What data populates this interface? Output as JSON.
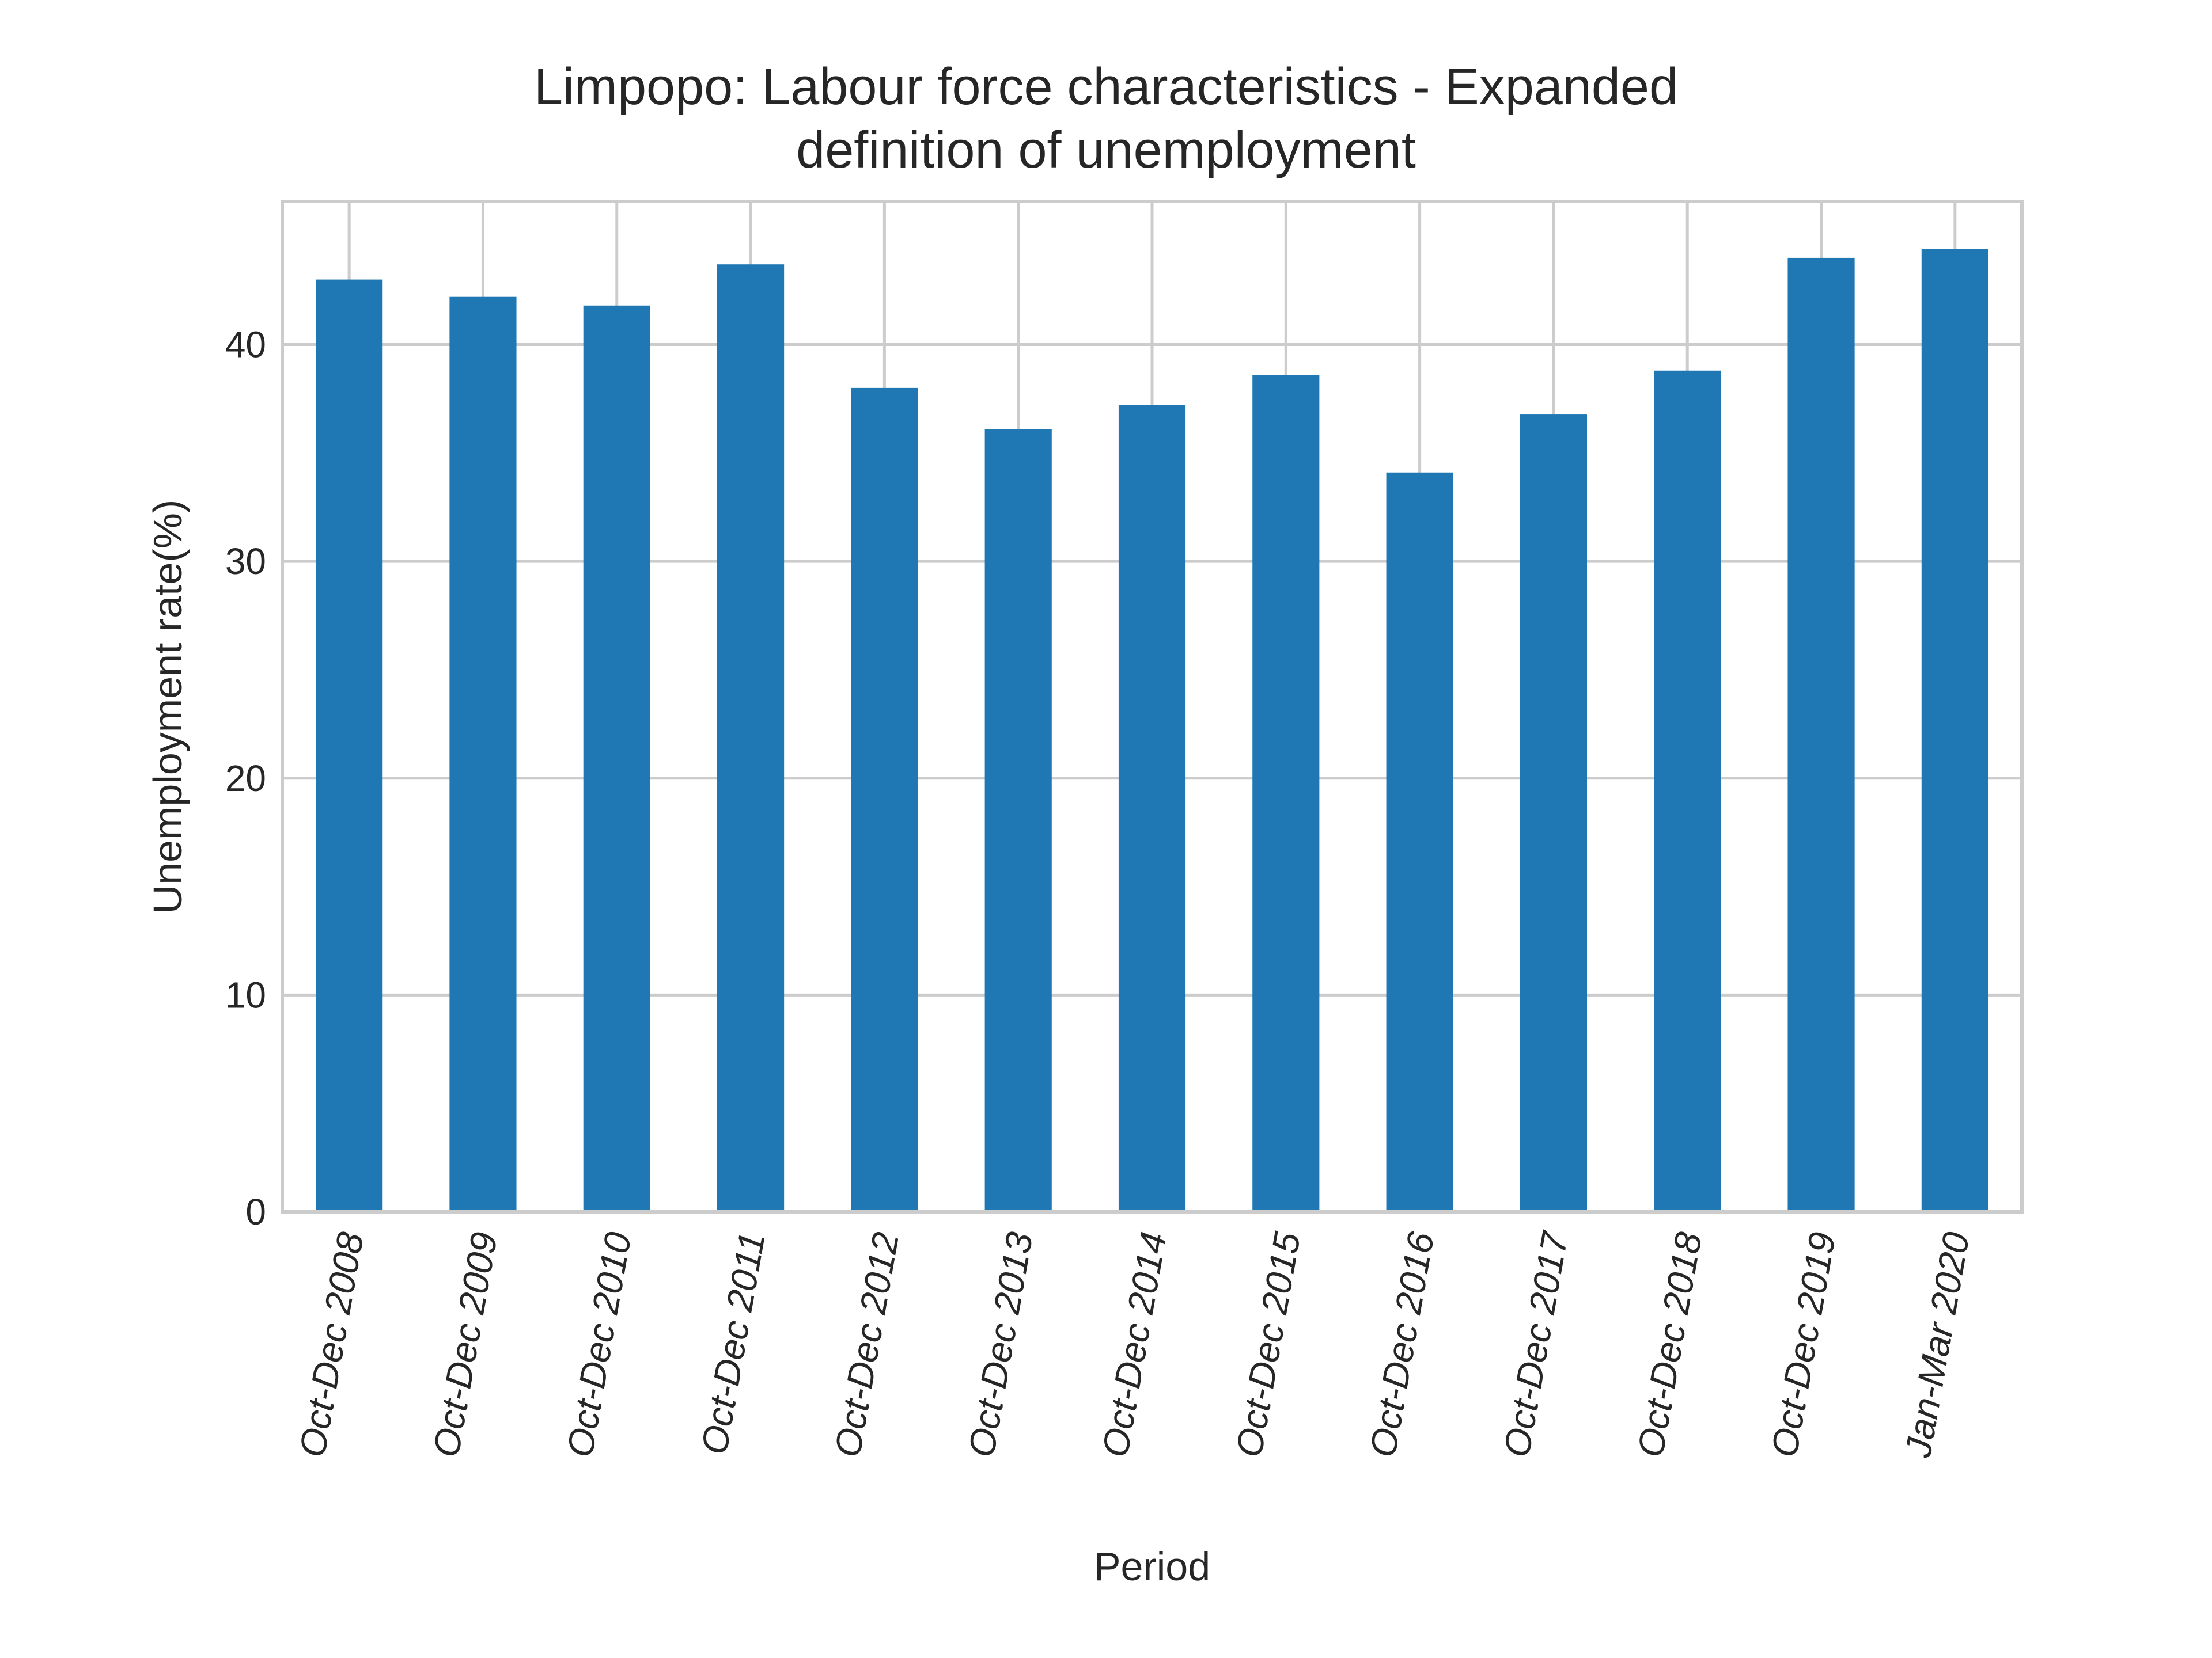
{
  "chart_data": {
    "type": "bar",
    "title": [
      "Limpopo: Labour force characteristics - Expanded",
      "definition of unemployment"
    ],
    "xlabel": "Period",
    "ylabel": "Unemployment rate(%)",
    "categories": [
      "Oct-Dec 2008",
      "Oct-Dec 2009",
      "Oct-Dec 2010",
      "Oct-Dec 2011",
      "Oct-Dec 2012",
      "Oct-Dec 2013",
      "Oct-Dec 2014",
      "Oct-Dec 2015",
      "Oct-Dec 2016",
      "Oct-Dec 2017",
      "Oct-Dec 2018",
      "Oct-Dec 2019",
      "Jan-Mar 2020"
    ],
    "values": [
      43.0,
      42.2,
      41.8,
      43.7,
      38.0,
      36.1,
      37.2,
      38.6,
      34.1,
      36.8,
      38.8,
      44.0,
      44.4
    ],
    "ylim": [
      0,
      46.6
    ],
    "yticks": [
      0,
      10,
      20,
      30,
      40
    ],
    "grid": true,
    "bar_color": "#1f77b4",
    "grid_color": "#cccccc"
  }
}
